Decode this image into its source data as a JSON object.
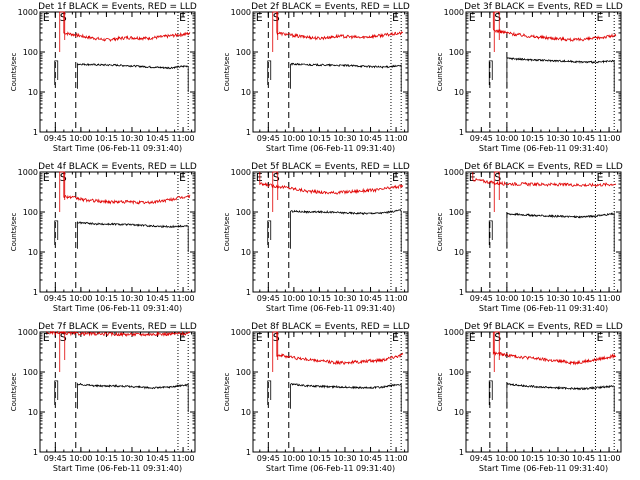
{
  "colors": {
    "events": "#000000",
    "lld": "#e00000",
    "axes": "#000000",
    "background": "#ffffff"
  },
  "charts": [
    {
      "title": "Det 1f BLACK = Events, RED = LLD"
    },
    {
      "title": "Det 2f BLACK = Events, RED = LLD"
    },
    {
      "title": "Det 3f BLACK = Events, RED = LLD"
    },
    {
      "title": "Det 4f BLACK = Events, RED = LLD"
    },
    {
      "title": "Det 5f BLACK = Events, RED = LLD"
    },
    {
      "title": "Det 6f BLACK = Events, RED = LLD"
    },
    {
      "title": "Det 7f BLACK = Events, RED = LLD"
    },
    {
      "title": "Det 8f BLACK = Events, RED = LLD"
    },
    {
      "title": "Det 9f BLACK = Events, RED = LLD"
    }
  ],
  "chart_data": [
    {
      "type": "line",
      "title": "Det 1f BLACK = Events, RED = LLD",
      "xlabel": "Start Time (06-Feb-11 09:31:40)",
      "ylabel": "Counts/sec",
      "yscale": "log",
      "ylim": [
        1,
        1000
      ],
      "xlim": [
        "09:36",
        "11:07"
      ],
      "xticks": [
        "09:45",
        "10:00",
        "10:15",
        "10:30",
        "10:45",
        "11:00"
      ],
      "yticks": [
        "1",
        "10",
        "100",
        "1000"
      ],
      "marker_labels": [
        "E",
        "S",
        "E"
      ],
      "markers": {
        "E_start": "09:37",
        "S": "09:47",
        "dashed": [
          "09:45",
          "09:57"
        ],
        "dotted": [
          "10:57",
          "11:03"
        ]
      },
      "series": [
        {
          "color": "red",
          "start": "09:50",
          "end": "11:04",
          "level": [
            300,
            240,
            200,
            230,
            220,
            250,
            290
          ]
        },
        {
          "color": "black",
          "start": "09:58",
          "end": "11:03",
          "level": [
            50,
            48,
            47,
            45,
            42,
            40,
            45
          ]
        }
      ]
    },
    {
      "type": "line",
      "title": "Det 2f BLACK = Events, RED = LLD",
      "xlabel": "Start Time (06-Feb-11 09:31:40)",
      "ylabel": "Counts/sec",
      "yscale": "log",
      "ylim": [
        1,
        1000
      ],
      "xlim": [
        "09:36",
        "11:07"
      ],
      "xticks": [
        "09:45",
        "10:00",
        "10:15",
        "10:30",
        "10:45",
        "11:00"
      ],
      "yticks": [
        "1",
        "10",
        "100",
        "1000"
      ],
      "marker_labels": [
        "E",
        "S",
        "E"
      ],
      "markers": {
        "E_start": "09:37",
        "S": "09:47",
        "dashed": [
          "09:45",
          "09:57"
        ],
        "dotted": [
          "10:57",
          "11:03"
        ]
      },
      "series": [
        {
          "color": "red",
          "start": "09:50",
          "end": "11:04",
          "level": [
            300,
            250,
            220,
            250,
            230,
            260,
            300
          ]
        },
        {
          "color": "black",
          "start": "09:58",
          "end": "11:03",
          "level": [
            50,
            48,
            47,
            46,
            44,
            42,
            45
          ]
        }
      ]
    },
    {
      "type": "line",
      "title": "Det 3f BLACK = Events, RED = LLD",
      "xlabel": "Start Time (06-Feb-11 09:31:40)",
      "ylabel": "Counts/sec",
      "yscale": "log",
      "ylim": [
        1,
        1000
      ],
      "xlim": [
        "09:36",
        "11:07"
      ],
      "xticks": [
        "09:45",
        "10:00",
        "10:15",
        "10:30",
        "10:45",
        "11:00"
      ],
      "yticks": [
        "1",
        "10",
        "100",
        "1000"
      ],
      "marker_labels": [
        "E",
        "S",
        "E"
      ],
      "markers": {
        "E_start": "09:37",
        "S": "09:52",
        "dashed": [
          "09:50",
          "10:00"
        ],
        "dotted": [
          "10:52",
          "11:03"
        ]
      },
      "series": [
        {
          "color": "red",
          "start": "09:52",
          "end": "11:04",
          "level": [
            350,
            280,
            240,
            220,
            200,
            220,
            260
          ]
        },
        {
          "color": "black",
          "start": "10:00",
          "end": "11:03",
          "level": [
            70,
            65,
            62,
            60,
            57,
            55,
            60
          ]
        }
      ]
    },
    {
      "type": "line",
      "title": "Det 4f BLACK = Events, RED = LLD",
      "xlabel": "Start Time (06-Feb-11 09:31:40)",
      "ylabel": "Counts/sec",
      "yscale": "log",
      "ylim": [
        1,
        1000
      ],
      "xlim": [
        "09:36",
        "11:07"
      ],
      "xticks": [
        "09:45",
        "10:00",
        "10:15",
        "10:30",
        "10:45",
        "11:00"
      ],
      "yticks": [
        "1",
        "10",
        "100",
        "1000"
      ],
      "marker_labels": [
        "E",
        "S",
        "E"
      ],
      "markers": {
        "E_start": "09:37",
        "S": "09:47",
        "dashed": [
          "09:45",
          "09:57"
        ],
        "dotted": [
          "10:57",
          "11:03"
        ]
      },
      "series": [
        {
          "color": "red",
          "start": "09:50",
          "end": "11:04",
          "level": [
            250,
            200,
            180,
            180,
            170,
            200,
            250
          ]
        },
        {
          "color": "black",
          "start": "09:58",
          "end": "11:03",
          "level": [
            55,
            50,
            50,
            48,
            45,
            43,
            45
          ]
        }
      ]
    },
    {
      "type": "line",
      "title": "Det 5f BLACK = Events, RED = LLD",
      "xlabel": "Start Time (06-Feb-11 09:31:40)",
      "ylabel": "Counts/sec",
      "yscale": "log",
      "ylim": [
        1,
        1000
      ],
      "xlim": [
        "09:36",
        "11:07"
      ],
      "xticks": [
        "09:45",
        "10:00",
        "10:15",
        "10:30",
        "10:45",
        "11:00"
      ],
      "yticks": [
        "1",
        "10",
        "100",
        "1000"
      ],
      "marker_labels": [
        "E",
        "S",
        "E"
      ],
      "markers": {
        "E_start": "09:37",
        "S": "09:47",
        "dashed": [
          "09:45",
          "09:57"
        ],
        "dotted": [
          "10:57",
          "11:03"
        ]
      },
      "series": [
        {
          "color": "red",
          "start": "09:40",
          "end": "11:04",
          "level": [
            500,
            420,
            330,
            300,
            330,
            360,
            450
          ]
        },
        {
          "color": "black",
          "start": "09:58",
          "end": "11:03",
          "level": [
            105,
            100,
            100,
            95,
            92,
            95,
            110
          ]
        }
      ]
    },
    {
      "type": "line",
      "title": "Det 6f BLACK = Events, RED = LLD",
      "xlabel": "Start Time (06-Feb-11 09:31:40)",
      "ylabel": "Counts/sec",
      "yscale": "log",
      "ylim": [
        1,
        1000
      ],
      "xlim": [
        "09:36",
        "11:07"
      ],
      "xticks": [
        "09:45",
        "10:00",
        "10:15",
        "10:30",
        "10:45",
        "11:00"
      ],
      "yticks": [
        "1",
        "10",
        "100",
        "1000"
      ],
      "marker_labels": [
        "E",
        "S",
        "E"
      ],
      "markers": {
        "E_start": "09:37",
        "S": "09:52",
        "dashed": [
          "09:50",
          "10:00"
        ],
        "dotted": [
          "10:52",
          "11:03"
        ]
      },
      "series": [
        {
          "color": "red",
          "start": "09:40",
          "end": "11:04",
          "level": [
            650,
            520,
            500,
            490,
            480,
            470,
            500
          ]
        },
        {
          "color": "black",
          "start": "10:00",
          "end": "11:03",
          "level": [
            90,
            85,
            80,
            78,
            75,
            80,
            90
          ]
        }
      ]
    },
    {
      "type": "line",
      "title": "Det 7f BLACK = Events, RED = LLD",
      "xlabel": "Start Time (06-Feb-11 09:31:40)",
      "ylabel": "Counts/sec",
      "yscale": "log",
      "ylim": [
        1,
        1000
      ],
      "xlim": [
        "09:36",
        "11:07"
      ],
      "xticks": [
        "09:45",
        "10:00",
        "10:15",
        "10:30",
        "10:45",
        "11:00"
      ],
      "yticks": [
        "1",
        "10",
        "100",
        "1000"
      ],
      "marker_labels": [
        "E",
        "S",
        "E"
      ],
      "markers": {
        "E_start": "09:37",
        "S": "09:47",
        "dashed": [
          "09:45",
          "09:57"
        ],
        "dotted": [
          "10:57",
          "11:03"
        ]
      },
      "series": [
        {
          "color": "red",
          "start": "09:40",
          "end": "11:04",
          "level": [
            950,
            920,
            900,
            880,
            870,
            890,
            920
          ]
        },
        {
          "color": "black",
          "start": "09:58",
          "end": "11:03",
          "level": [
            50,
            45,
            45,
            43,
            40,
            42,
            48
          ]
        }
      ]
    },
    {
      "type": "line",
      "title": "Det 8f BLACK = Events, RED = LLD",
      "xlabel": "Start Time (06-Feb-11 09:31:40)",
      "ylabel": "Counts/sec",
      "yscale": "log",
      "ylim": [
        1,
        1000
      ],
      "xlim": [
        "09:36",
        "11:07"
      ],
      "xticks": [
        "09:45",
        "10:00",
        "10:15",
        "10:30",
        "10:45",
        "11:00"
      ],
      "yticks": [
        "1",
        "10",
        "100",
        "1000"
      ],
      "marker_labels": [
        "E",
        "S",
        "E"
      ],
      "markers": {
        "E_start": "09:37",
        "S": "09:47",
        "dashed": [
          "09:45",
          "09:57"
        ],
        "dotted": [
          "10:57",
          "11:03"
        ]
      },
      "series": [
        {
          "color": "red",
          "start": "09:50",
          "end": "11:04",
          "level": [
            270,
            220,
            190,
            170,
            180,
            200,
            270
          ]
        },
        {
          "color": "black",
          "start": "09:58",
          "end": "11:03",
          "level": [
            50,
            45,
            43,
            42,
            40,
            42,
            50
          ]
        }
      ]
    },
    {
      "type": "line",
      "title": "Det 9f BLACK = Events, RED = LLD",
      "xlabel": "Start Time (06-Feb-11 09:31:40)",
      "ylabel": "Counts/sec",
      "yscale": "log",
      "ylim": [
        1,
        1000
      ],
      "xlim": [
        "09:36",
        "11:07"
      ],
      "xticks": [
        "09:45",
        "10:00",
        "10:15",
        "10:30",
        "10:45",
        "11:00"
      ],
      "yticks": [
        "1",
        "10",
        "100",
        "1000"
      ],
      "marker_labels": [
        "E",
        "S",
        "E"
      ],
      "markers": {
        "E_start": "09:37",
        "S": "09:52",
        "dashed": [
          "09:50",
          "10:00"
        ],
        "dotted": [
          "10:52",
          "11:03"
        ]
      },
      "series": [
        {
          "color": "red",
          "start": "09:52",
          "end": "11:04",
          "level": [
            300,
            250,
            220,
            190,
            170,
            200,
            260
          ]
        },
        {
          "color": "black",
          "start": "10:00",
          "end": "11:03",
          "level": [
            50,
            45,
            42,
            40,
            38,
            40,
            45
          ]
        }
      ]
    }
  ]
}
